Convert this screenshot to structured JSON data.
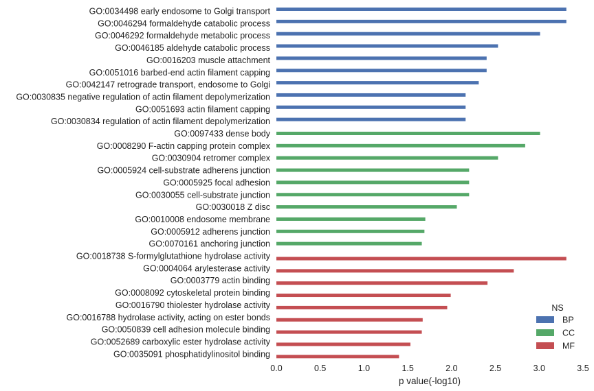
{
  "chart_data": {
    "type": "bar",
    "orientation": "horizontal",
    "xlabel": "p value(-log10)",
    "ylabel": "",
    "xlim": [
      0,
      3.5
    ],
    "xticks": [
      "0.0",
      "0.5",
      "1.0",
      "1.5",
      "2.0",
      "2.5",
      "3.0",
      "3.5"
    ],
    "grid": false,
    "legend": {
      "title": "NS",
      "position": "bottom-right",
      "entries": [
        {
          "name": "BP",
          "color": "#4c72b0"
        },
        {
          "name": "CC",
          "color": "#55a868"
        },
        {
          "name": "MF",
          "color": "#c44e52"
        }
      ]
    },
    "bars": [
      {
        "label": "GO:0034498 early endosome to Golgi transport",
        "group": "BP",
        "value": 3.31
      },
      {
        "label": "GO:0046294 formaldehyde catabolic process",
        "group": "BP",
        "value": 3.31
      },
      {
        "label": "GO:0046292 formaldehyde metabolic process",
        "group": "BP",
        "value": 3.01
      },
      {
        "label": "GO:0046185 aldehyde catabolic process",
        "group": "BP",
        "value": 2.53
      },
      {
        "label": "GO:0016203 muscle attachment",
        "group": "BP",
        "value": 2.4
      },
      {
        "label": "GO:0051016 barbed-end actin filament capping",
        "group": "BP",
        "value": 2.4
      },
      {
        "label": "GO:0042147 retrograde transport, endosome to Golgi",
        "group": "BP",
        "value": 2.31
      },
      {
        "label": "GO:0030835 negative regulation of actin filament depolymerization",
        "group": "BP",
        "value": 2.16
      },
      {
        "label": "GO:0051693 actin filament capping",
        "group": "BP",
        "value": 2.16
      },
      {
        "label": "GO:0030834 regulation of actin filament depolymerization",
        "group": "BP",
        "value": 2.16
      },
      {
        "label": "GO:0097433 dense body",
        "group": "CC",
        "value": 3.01
      },
      {
        "label": "GO:0008290 F-actin capping protein complex",
        "group": "CC",
        "value": 2.84
      },
      {
        "label": "GO:0030904 retromer complex",
        "group": "CC",
        "value": 2.53
      },
      {
        "label": "GO:0005924 cell-substrate adherens junction",
        "group": "CC",
        "value": 2.2
      },
      {
        "label": "GO:0005925 focal adhesion",
        "group": "CC",
        "value": 2.2
      },
      {
        "label": "GO:0030055 cell-substrate junction",
        "group": "CC",
        "value": 2.2
      },
      {
        "label": "GO:0030018 Z disc",
        "group": "CC",
        "value": 2.06
      },
      {
        "label": "GO:0010008 endosome membrane",
        "group": "CC",
        "value": 1.7
      },
      {
        "label": "GO:0005912 adherens junction",
        "group": "CC",
        "value": 1.69
      },
      {
        "label": "GO:0070161 anchoring junction",
        "group": "CC",
        "value": 1.66
      },
      {
        "label": "GO:0018738 S-formylglutathione hydrolase activity",
        "group": "MF",
        "value": 3.31
      },
      {
        "label": "GO:0004064 arylesterase activity",
        "group": "MF",
        "value": 2.71
      },
      {
        "label": "GO:0003779 actin binding",
        "group": "MF",
        "value": 2.41
      },
      {
        "label": "GO:0008092 cytoskeletal protein binding",
        "group": "MF",
        "value": 1.99
      },
      {
        "label": "GO:0016790 thiolester hydrolase activity",
        "group": "MF",
        "value": 1.95
      },
      {
        "label": "GO:0016788 hydrolase activity, acting on ester bonds",
        "group": "MF",
        "value": 1.67
      },
      {
        "label": "GO:0050839 cell adhesion molecule binding",
        "group": "MF",
        "value": 1.66
      },
      {
        "label": "GO:0052689 carboxylic ester hydrolase activity",
        "group": "MF",
        "value": 1.53
      },
      {
        "label": "GO:0035091 phosphatidylinositol binding",
        "group": "MF",
        "value": 1.4
      }
    ]
  }
}
